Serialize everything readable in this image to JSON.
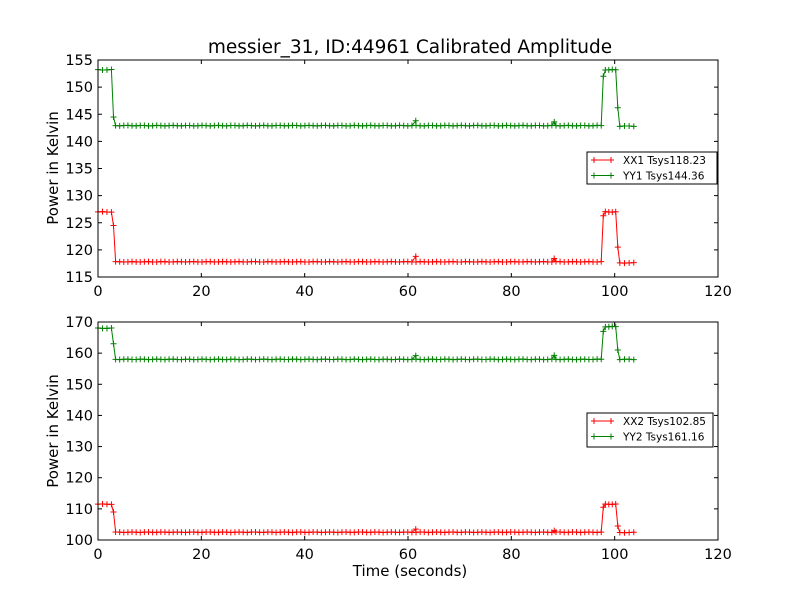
{
  "chart_data": [
    {
      "type": "line",
      "title": "messier_31, ID:44961 Calibrated Amplitude",
      "xlabel": "",
      "ylabel": "Power in Kelvin",
      "xlim": [
        0,
        120
      ],
      "ylim": [
        115,
        155
      ],
      "xticks": [
        "0",
        "20",
        "40",
        "60",
        "80",
        "100",
        "120"
      ],
      "yticks": [
        "115",
        "120",
        "125",
        "130",
        "135",
        "140",
        "145",
        "150",
        "155"
      ],
      "legend_position": "right",
      "grid": false,
      "marker": "+",
      "series": [
        {
          "name": "XX1 Tsys118.23",
          "color": "#ff0000",
          "segments": [
            {
              "x0": 0,
              "x1": 2.6,
              "y": 127.0
            },
            {
              "x0": 3.4,
              "x1": 97.4,
              "y": 117.8
            },
            {
              "x0": 98.2,
              "x1": 100.2,
              "y": 127.0
            },
            {
              "x0": 101.0,
              "x1": 103.7,
              "y": 117.6
            }
          ],
          "transitions": [
            {
              "x": 3.0,
              "y": 124.5
            },
            {
              "x": 97.8,
              "y": 126.3
            },
            {
              "x": 100.6,
              "y": 120.5
            }
          ],
          "outliers": [
            {
              "x": 61.5,
              "y": 118.8
            },
            {
              "x": 88.3,
              "y": 118.4
            }
          ]
        },
        {
          "name": "YY1 Tsys144.36",
          "color": "#008000",
          "segments": [
            {
              "x0": 0,
              "x1": 2.6,
              "y": 153.2
            },
            {
              "x0": 3.4,
              "x1": 97.4,
              "y": 142.9
            },
            {
              "x0": 98.2,
              "x1": 100.2,
              "y": 153.2
            },
            {
              "x0": 101.0,
              "x1": 103.7,
              "y": 142.8
            }
          ],
          "transitions": [
            {
              "x": 3.0,
              "y": 144.5
            },
            {
              "x": 97.8,
              "y": 152.0
            },
            {
              "x": 100.6,
              "y": 146.2
            }
          ],
          "outliers": [
            {
              "x": 61.5,
              "y": 143.8
            },
            {
              "x": 88.3,
              "y": 143.6
            }
          ]
        }
      ]
    },
    {
      "type": "line",
      "title": "",
      "xlabel": "Time (seconds)",
      "ylabel": "Power in Kelvin",
      "xlim": [
        0,
        120
      ],
      "ylim": [
        100,
        170
      ],
      "xticks": [
        "0",
        "20",
        "40",
        "60",
        "80",
        "100",
        "120"
      ],
      "yticks": [
        "100",
        "110",
        "120",
        "130",
        "140",
        "150",
        "160",
        "170"
      ],
      "legend_position": "right",
      "grid": false,
      "marker": "+",
      "series": [
        {
          "name": "XX2 Tsys102.85",
          "color": "#ff0000",
          "segments": [
            {
              "x0": 0,
              "x1": 2.6,
              "y": 111.5
            },
            {
              "x0": 3.4,
              "x1": 97.4,
              "y": 102.5
            },
            {
              "x0": 98.2,
              "x1": 100.2,
              "y": 111.5
            },
            {
              "x0": 101.0,
              "x1": 103.7,
              "y": 102.4
            }
          ],
          "transitions": [
            {
              "x": 3.0,
              "y": 109.0
            },
            {
              "x": 97.8,
              "y": 110.5
            },
            {
              "x": 100.6,
              "y": 104.5
            }
          ],
          "outliers": [
            {
              "x": 61.5,
              "y": 103.5
            },
            {
              "x": 88.3,
              "y": 103.0
            }
          ]
        },
        {
          "name": "YY2 Tsys161.16",
          "color": "#008000",
          "segments": [
            {
              "x0": 0,
              "x1": 2.6,
              "y": 168.0
            },
            {
              "x0": 3.4,
              "x1": 97.4,
              "y": 158.0
            },
            {
              "x0": 98.2,
              "x1": 100.2,
              "y": 168.5
            },
            {
              "x0": 101.0,
              "x1": 103.7,
              "y": 158.0
            }
          ],
          "transitions": [
            {
              "x": 3.0,
              "y": 163.0
            },
            {
              "x": 97.8,
              "y": 167.0
            },
            {
              "x": 100.6,
              "y": 161.0
            }
          ],
          "outliers": [
            {
              "x": 61.5,
              "y": 159.2
            },
            {
              "x": 88.3,
              "y": 159.3
            }
          ]
        }
      ]
    }
  ]
}
